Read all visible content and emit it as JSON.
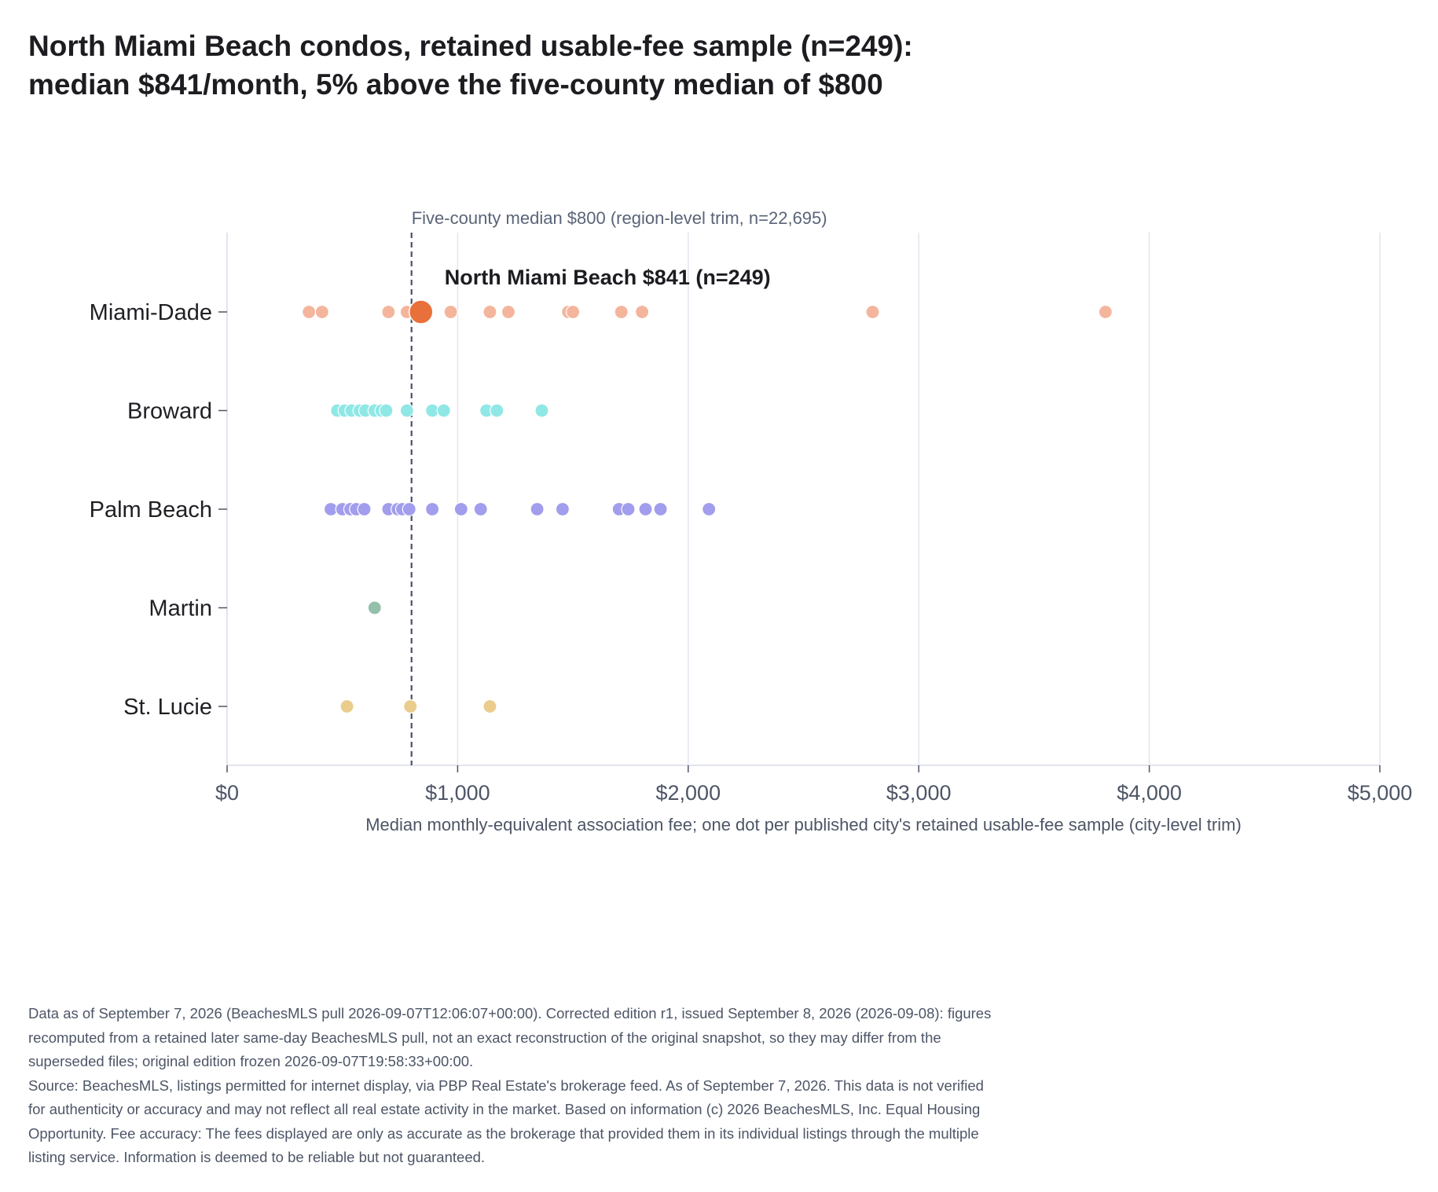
{
  "title": {
    "line1": "North Miami Beach condos, retained usable-fee sample (n=249):",
    "line2": "median $841/month, 5% above the five-county median of $800"
  },
  "chart_data": {
    "type": "scatter",
    "orientation": "horizontal-strip",
    "xlabel": "Median monthly-equivalent association fee; one dot per published city's retained usable-fee sample (city-level trim)",
    "xlim": [
      0,
      5000
    ],
    "xticks": [
      0,
      1000,
      2000,
      3000,
      4000,
      5000
    ],
    "xtick_labels": [
      "$0",
      "$1,000",
      "$2,000",
      "$3,000",
      "$4,000",
      "$5,000"
    ],
    "categories": [
      "Miami-Dade",
      "Broward",
      "Palm Beach",
      "Martin",
      "St. Lucie"
    ],
    "grid": "vertical",
    "reference_line": {
      "value": 800,
      "label": "Five-county median $800 (region-level trim, n=22,695)",
      "style": "dashed"
    },
    "highlight": {
      "series": "Miami-Dade",
      "value": 841,
      "label": "North Miami Beach $841 (n=249)",
      "color": "#e8703a"
    },
    "series": [
      {
        "name": "Miami-Dade",
        "color": "#f4b59c",
        "values": [
          355,
          412,
          700,
          780,
          970,
          1140,
          1220,
          1480,
          1500,
          1710,
          1800,
          2800,
          3810
        ]
      },
      {
        "name": "Broward",
        "color": "#8fe8e6",
        "values": [
          478,
          510,
          540,
          575,
          600,
          640,
          670,
          690,
          780,
          890,
          940,
          1125,
          1170,
          1365
        ]
      },
      {
        "name": "Palm Beach",
        "color": "#a29ded",
        "values": [
          450,
          500,
          535,
          560,
          595,
          700,
          740,
          760,
          790,
          890,
          1015,
          1100,
          1345,
          1455,
          1700,
          1740,
          1815,
          1880,
          2090
        ]
      },
      {
        "name": "Martin",
        "color": "#94bfaa",
        "values": [
          640
        ]
      },
      {
        "name": "St. Lucie",
        "color": "#eacc8c",
        "values": [
          520,
          795,
          1140
        ]
      }
    ]
  },
  "footer": {
    "line1": "Data as of September 7, 2026 (BeachesMLS pull 2026-09-07T12:06:07+00:00). Corrected edition r1, issued September 8, 2026 (2026-09-08): figures",
    "line2": "recomputed from a retained later same-day BeachesMLS pull, not an exact reconstruction of the original snapshot, so they may differ from the",
    "line3": "superseded files; original edition frozen 2026-09-07T19:58:33+00:00.",
    "line4": "Source: BeachesMLS, listings permitted for internet display, via PBP Real Estate's brokerage feed. As of September 7, 2026. This data is not verified",
    "line5": "for authenticity or accuracy and may not reflect all real estate activity in the market. Based on information (c) 2026 BeachesMLS, Inc. Equal Housing",
    "line6": "Opportunity. Fee accuracy: The fees displayed are only as accurate as the brokerage that provided them in its individual listings through the multiple",
    "line7": "listing service. Information is deemed to be reliable but not guaranteed."
  }
}
